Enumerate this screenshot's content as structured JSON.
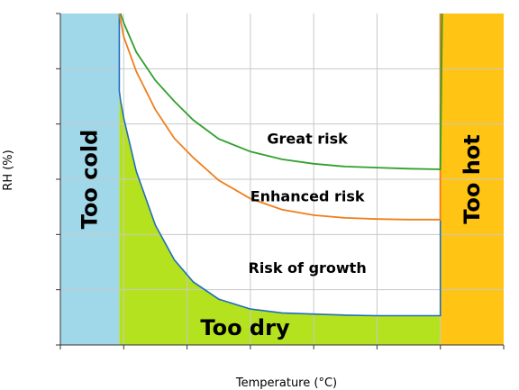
{
  "chart_data": {
    "type": "area",
    "title": "",
    "xlabel": "Temperature (°C)",
    "ylabel": "RH (%)",
    "xlim": [
      0,
      7
    ],
    "ylim": [
      0,
      6
    ],
    "x_tick_count": 8,
    "y_tick_count": 7,
    "x_tick_labels": [],
    "y_tick_labels": [],
    "grid": true,
    "regions": [
      {
        "name": "Too cold",
        "color": "#a0d8ea",
        "x_range": [
          0,
          0.93
        ]
      },
      {
        "name": "Too hot",
        "color": "#ffc414",
        "x_range": [
          6,
          7
        ]
      },
      {
        "name": "Too dry",
        "color": "#b5e21e"
      }
    ],
    "labels": [
      {
        "text": "Great risk",
        "x": 3.9,
        "y": 3.73
      },
      {
        "text": "Enhanced risk",
        "x": 3.9,
        "y": 2.69
      },
      {
        "text": "Risk of growth",
        "x": 3.9,
        "y": 1.39
      }
    ],
    "series": [
      {
        "color": "#1f6fb8",
        "x": [
          0.93,
          0.95,
          1.0,
          1.2,
          1.5,
          1.8,
          2.1,
          2.5,
          3.0,
          3.5,
          4.0,
          4.5,
          5.0,
          5.5,
          6.0
        ],
        "y": [
          4.6,
          4.42,
          4.11,
          3.14,
          2.17,
          1.54,
          1.14,
          0.83,
          0.65,
          0.58,
          0.56,
          0.54,
          0.53,
          0.53,
          0.53
        ]
      },
      {
        "color": "#ef7f1c",
        "x": [
          0.93,
          1.0,
          1.2,
          1.5,
          1.8,
          2.1,
          2.5,
          3.0,
          3.5,
          4.0,
          4.5,
          5.0,
          5.5,
          6.0
        ],
        "y": [
          6.0,
          5.58,
          4.95,
          4.26,
          3.74,
          3.39,
          2.98,
          2.65,
          2.45,
          2.35,
          2.3,
          2.28,
          2.27,
          2.27
        ]
      },
      {
        "color": "#30a02c",
        "x": [
          0.95,
          1.0,
          1.2,
          1.5,
          1.8,
          2.1,
          2.5,
          3.0,
          3.5,
          4.0,
          4.5,
          5.0,
          5.5,
          6.0
        ],
        "y": [
          6.0,
          5.83,
          5.3,
          4.79,
          4.41,
          4.07,
          3.73,
          3.5,
          3.36,
          3.28,
          3.23,
          3.21,
          3.19,
          3.18
        ]
      }
    ]
  }
}
